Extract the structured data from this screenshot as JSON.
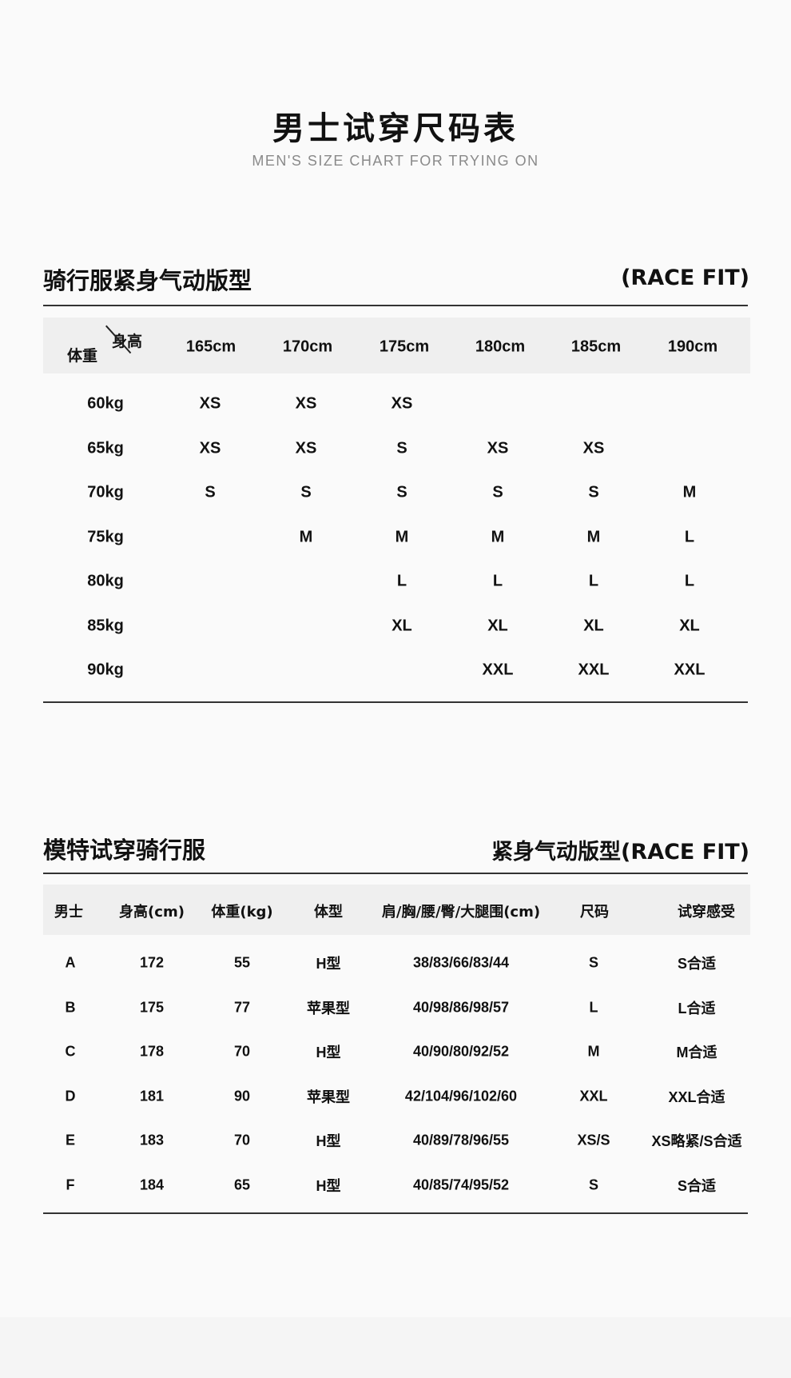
{
  "header": {
    "title": "男士试穿尺码表",
    "subtitle": "MEN'S SIZE CHART FOR TRYING ON"
  },
  "size_chart": {
    "title": "骑行服紧身气动版型",
    "fit_label": "(RACE FIT)",
    "corner_height_label": "身高",
    "corner_weight_label": "体重",
    "heights": [
      "165cm",
      "170cm",
      "175cm",
      "180cm",
      "185cm",
      "190cm"
    ],
    "rows": [
      {
        "weight": "60kg",
        "sizes": [
          "XS",
          "XS",
          "XS",
          "",
          "",
          ""
        ]
      },
      {
        "weight": "65kg",
        "sizes": [
          "XS",
          "XS",
          "S",
          "XS",
          "XS",
          ""
        ]
      },
      {
        "weight": "70kg",
        "sizes": [
          "S",
          "S",
          "S",
          "S",
          "S",
          "M"
        ]
      },
      {
        "weight": "75kg",
        "sizes": [
          "",
          "M",
          "M",
          "M",
          "M",
          "L"
        ]
      },
      {
        "weight": "80kg",
        "sizes": [
          "",
          "",
          "L",
          "L",
          "L",
          "L"
        ]
      },
      {
        "weight": "85kg",
        "sizes": [
          "",
          "",
          "XL",
          "XL",
          "XL",
          "XL"
        ]
      },
      {
        "weight": "90kg",
        "sizes": [
          "",
          "",
          "",
          "XXL",
          "XXL",
          "XXL"
        ]
      }
    ]
  },
  "model_chart": {
    "title": "模特试穿骑行服",
    "fit_label": "紧身气动版型(RACE FIT)",
    "columns": [
      "男士",
      "身高(cm)",
      "体重(kg)",
      "体型",
      "肩/胸/腰/臀/大腿围(cm)",
      "尺码",
      "试穿感受"
    ],
    "rows": [
      [
        "A",
        "172",
        "55",
        "H型",
        "38/83/66/83/44",
        "S",
        "S合适"
      ],
      [
        "B",
        "175",
        "77",
        "苹果型",
        "40/98/86/98/57",
        "L",
        "L合适"
      ],
      [
        "C",
        "178",
        "70",
        "H型",
        "40/90/80/92/52",
        "M",
        "M合适"
      ],
      [
        "D",
        "181",
        "90",
        "苹果型",
        "42/104/96/102/60",
        "XXL",
        "XXL合适"
      ],
      [
        "E",
        "183",
        "70",
        "H型",
        "40/89/78/96/55",
        "XS/S",
        "XS略紧/S合适"
      ],
      [
        "F",
        "184",
        "65",
        "H型",
        "40/85/74/95/52",
        "S",
        "S合适"
      ]
    ]
  }
}
